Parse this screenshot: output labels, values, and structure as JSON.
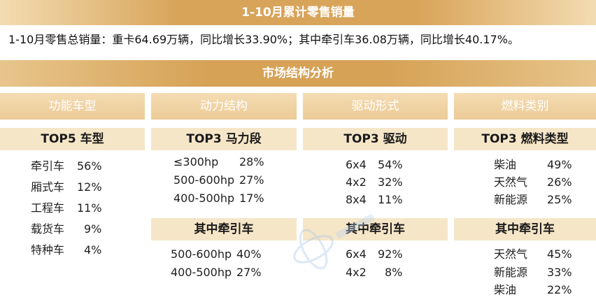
{
  "title": "1-10月累计零售销量",
  "summary": "1-10月零售总销量：重卡64.69万辆，同比增长33.90%；其中牵引车36.08万辆，同比增长40.17%。",
  "section_title": "市场结构分析",
  "columns": [
    {
      "header": "功能车型",
      "top_title": "TOP5 车型",
      "top_items": [
        {
          "label": "牵引车",
          "value": "56%"
        },
        {
          "label": "厢式车",
          "value": "12%"
        },
        {
          "label": "工程车",
          "value": "11%"
        },
        {
          "label": "载货车",
          "value": "9%"
        },
        {
          "label": "特种车",
          "value": "4%"
        }
      ]
    },
    {
      "header": "动力结构",
      "top_title": "TOP3 马力段",
      "top_items": [
        {
          "label": "≤300hp",
          "value": "28%"
        },
        {
          "label": "500-600hp",
          "value": "27%"
        },
        {
          "label": "400-500hp",
          "value": "17%"
        }
      ],
      "sub_title": "其中牵引车",
      "sub_items": [
        {
          "label": "500-600hp",
          "value": "40%"
        },
        {
          "label": "400-500hp",
          "value": "27%"
        }
      ]
    },
    {
      "header": "驱动形式",
      "top_title": "TOP3 驱动",
      "top_items": [
        {
          "label": "6x4",
          "value": "54%"
        },
        {
          "label": "4x2",
          "value": "32%"
        },
        {
          "label": "8x4",
          "value": "11%"
        }
      ],
      "sub_title": "其中牵引车",
      "sub_items": [
        {
          "label": "6x4",
          "value": "92%"
        },
        {
          "label": "4x2",
          "value": "8%"
        }
      ]
    },
    {
      "header": "燃料类别",
      "top_title": "TOP3 燃料类型",
      "top_items": [
        {
          "label": "柴油",
          "value": "49%"
        },
        {
          "label": "天然气",
          "value": "26%"
        },
        {
          "label": "新能源",
          "value": "25%"
        }
      ],
      "sub_title": "其中牵引车",
      "sub_items": [
        {
          "label": "天然气",
          "value": "45%"
        },
        {
          "label": "新能源",
          "value": "33%"
        },
        {
          "label": "柴油",
          "value": "22%"
        }
      ]
    }
  ],
  "colors": {
    "banner_gold": "#d6a256",
    "header_light_gold": "#eccb96",
    "subheader_cream": "#f6e6c8",
    "text": "#1f1f1f"
  }
}
